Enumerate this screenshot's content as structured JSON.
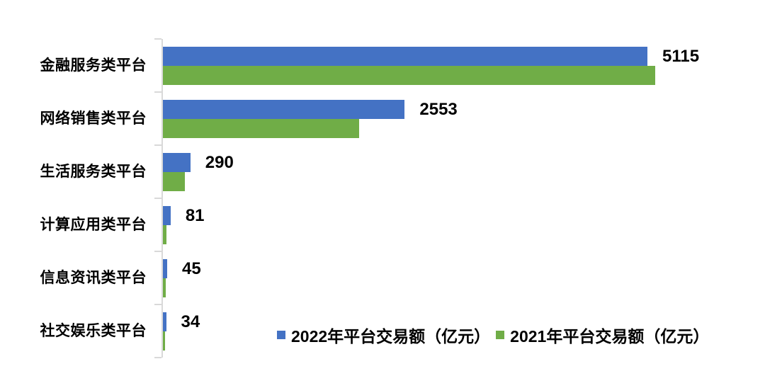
{
  "chart_data": {
    "type": "bar",
    "orientation": "horizontal",
    "title": "",
    "xlabel": "",
    "ylabel": "",
    "categories": [
      "金融服务类平台",
      "网络销售类平台",
      "生活服务类平台",
      "计算应用类平台",
      "信息资讯类平台",
      "社交娱乐类平台"
    ],
    "series": [
      {
        "name": "2022年平台交易额（亿元）",
        "color": "#4472C4",
        "values": [
          5115,
          2553,
          290,
          81,
          45,
          34
        ],
        "data_labels": [
          "5115",
          "2553",
          "290",
          "81",
          "45",
          "34"
        ]
      },
      {
        "name": "2021年平台交易额（亿元）",
        "color": "#70AD47",
        "values": [
          5200,
          2070,
          235,
          40,
          30,
          25
        ],
        "data_labels": []
      }
    ],
    "xlim": [
      0,
      6000
    ],
    "grid": false,
    "legend_position": "bottom",
    "axis_color": "#D9D9D9",
    "text_color": "#000000",
    "background": "#FFFFFF"
  }
}
